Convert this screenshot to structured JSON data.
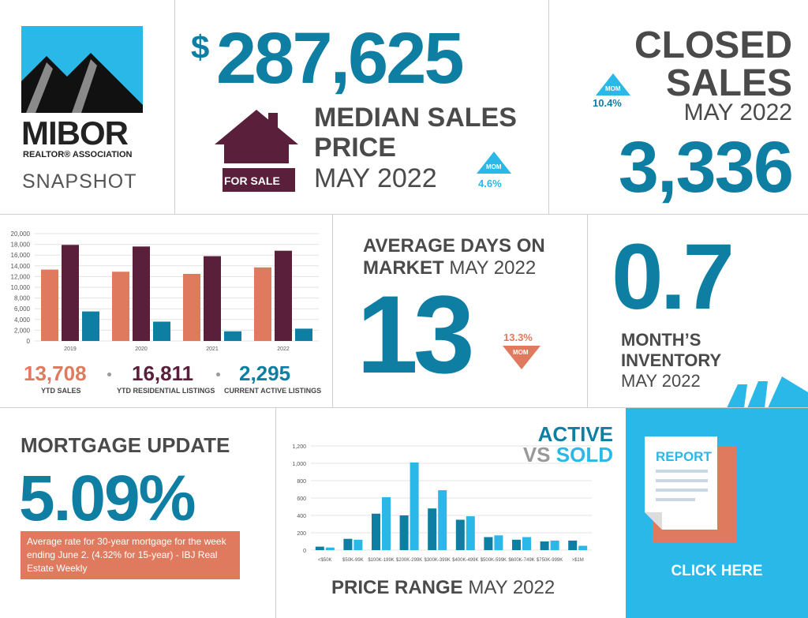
{
  "logo": {
    "name": "MIBOR",
    "sub": "REALTOR® ASSOCIATION",
    "snapshot": "SNAPSHOT"
  },
  "median": {
    "dollar": "$",
    "value": "287,625",
    "title_line1": "MEDIAN SALES",
    "title_line2": "PRICE",
    "period": "MAY 2022",
    "for_sale": "FOR SALE",
    "mom_label": "MOM",
    "mom_value": "4.6%"
  },
  "closed": {
    "title_line1": "CLOSED",
    "title_line2": "SALES",
    "period": "MAY 2022",
    "value": "3,336",
    "mom_label": "MOM",
    "mom_value": "10.4%"
  },
  "ytd_chart": {
    "legend": [
      {
        "value": "13,708",
        "label": "YTD SALES"
      },
      {
        "value": "16,811",
        "label": "YTD RESIDENTIAL LISTINGS"
      },
      {
        "value": "2,295",
        "label": "CURRENT ACTIVE LISTINGS"
      }
    ]
  },
  "dom": {
    "title_line1": "AVERAGE DAYS ON",
    "title_line2a": "MARKET",
    "title_line2b": "MAY 2022",
    "value": "13",
    "mom_value": "13.3%",
    "mom_label": "MOM"
  },
  "inventory": {
    "value": "0.7",
    "title_line1": "MONTH’S",
    "title_line2": "INVENTORY",
    "period": "MAY 2022"
  },
  "mortgage": {
    "title": "MORTGAGE UPDATE",
    "rate": "5.09%",
    "note": "Average rate for 30-year mortgage for the week ending June 2. (4.32% for 15-year) - IBJ Real Estate Weekly"
  },
  "price_range": {
    "title_active": "ACTIVE",
    "title_vs": "VS",
    "title_sold": "SOLD",
    "footer_bold": "PRICE RANGE",
    "footer_period": "MAY 2022"
  },
  "report": {
    "doc_title": "REPORT",
    "cta": "CLICK HERE"
  },
  "colors": {
    "teal": "#0e7fa3",
    "light_blue": "#29b8e8",
    "plum": "#5a1f3a",
    "orange": "#e07a5f",
    "dark_gray": "#4a4a4a"
  },
  "chart_data": [
    {
      "type": "bar",
      "categories": [
        "2019",
        "2020",
        "2021",
        "2022"
      ],
      "series": [
        {
          "name": "YTD SALES",
          "values": [
            13300,
            12900,
            12500,
            13708
          ]
        },
        {
          "name": "YTD RESIDENTIAL LISTINGS",
          "values": [
            17900,
            17600,
            15800,
            16811
          ]
        },
        {
          "name": "CURRENT ACTIVE LISTINGS",
          "values": [
            5500,
            3600,
            1800,
            2295
          ]
        }
      ],
      "ylim": [
        0,
        20000
      ],
      "yticks": [
        "0",
        "2,000",
        "4,000",
        "6,000",
        "8,000",
        "10,000",
        "12,000",
        "14,000",
        "16,000",
        "18,000",
        "20,000"
      ],
      "grid": true
    },
    {
      "type": "bar",
      "categories": [
        "<$50K",
        "$50K-99K",
        "$100K-199K",
        "$200K-299K",
        "$300K-399K",
        "$400K-499K",
        "$500K-599K",
        "$600K-749K",
        "$750K-999K",
        ">$1M"
      ],
      "series": [
        {
          "name": "ACTIVE",
          "values": [
            40,
            130,
            420,
            400,
            480,
            350,
            150,
            120,
            100,
            110
          ]
        },
        {
          "name": "SOLD",
          "values": [
            30,
            120,
            610,
            1010,
            690,
            390,
            170,
            150,
            110,
            50
          ]
        }
      ],
      "ylim": [
        0,
        1200
      ],
      "yticks": [
        "0",
        "200",
        "400",
        "600",
        "800",
        "1,000",
        "1,200"
      ],
      "grid": true
    }
  ]
}
